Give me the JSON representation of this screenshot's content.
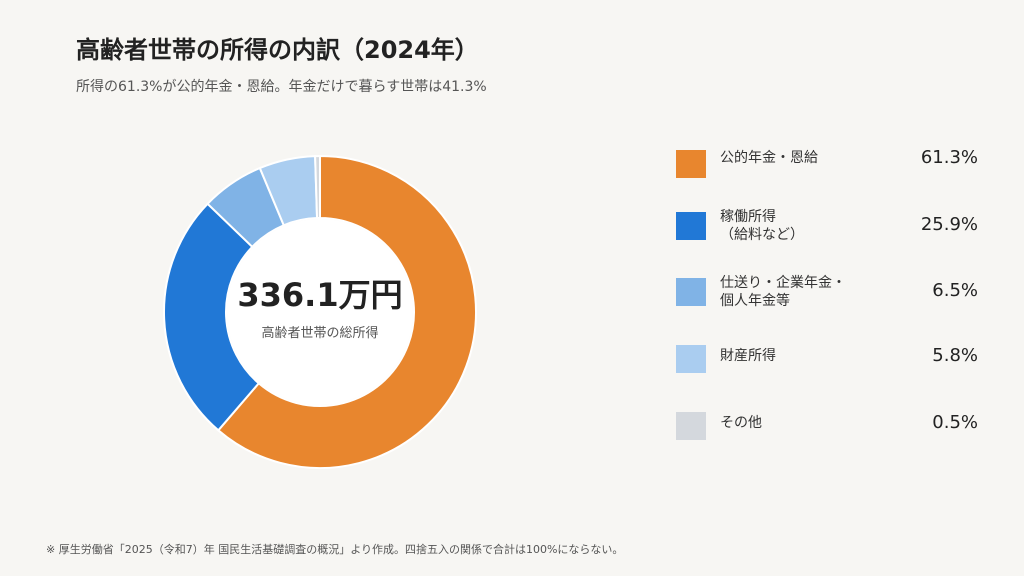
{
  "title": "高齢者世帯の所得の内訳（2024年）",
  "subtitle": "所得の61.3%が公的年金・恩給。年金だけで暮らす世帯は41.3%",
  "center": {
    "total": "336.1万円",
    "label": "高齢者世帯の総所得"
  },
  "note": "※ 厚生労働省「2025（令和7）年 国民生活基礎調査の概況」より作成。四捨五入の関係で合計は100%にならない。",
  "chart_data": {
    "type": "pie",
    "categories": [
      "公的年金・恩給",
      "稼働所得\n（給料など）",
      "仕送り・企業年金・\n個人年金等",
      "財産所得",
      "その他"
    ],
    "values": [
      61.3,
      25.9,
      6.5,
      5.8,
      0.5
    ],
    "value_labels": [
      "61.3%",
      "25.9%",
      "6.5%",
      "5.8%",
      "0.5%"
    ],
    "colors": [
      "#e8862e",
      "#2178d6",
      "#80b3e6",
      "#aacdf0",
      "#d4d8dd"
    ],
    "unit": "%"
  }
}
